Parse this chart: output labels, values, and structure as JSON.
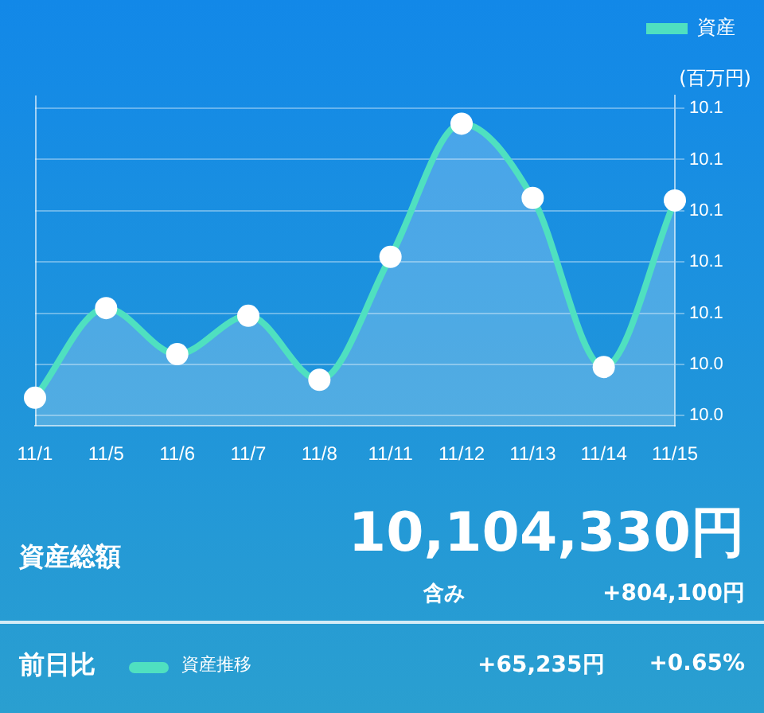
{
  "chart_data": {
    "type": "area",
    "categories": [
      "11/1",
      "11/5",
      "11/6",
      "11/7",
      "11/8",
      "11/11",
      "11/12",
      "11/13",
      "11/14",
      "11/15"
    ],
    "series": [
      {
        "name": "資産",
        "color": "#4fe0c0",
        "values": [
          10.027,
          10.062,
          10.044,
          10.059,
          10.034,
          10.082,
          10.134,
          10.105,
          10.039,
          10.104
        ]
      }
    ],
    "ylabel": "(百万円)",
    "ylim": [
      10.016,
      10.145
    ],
    "yticks": [
      {
        "value": 10.02,
        "label": "10.0"
      },
      {
        "value": 10.04,
        "label": "10.0"
      },
      {
        "value": 10.06,
        "label": "10.1"
      },
      {
        "value": 10.08,
        "label": "10.1"
      },
      {
        "value": 10.1,
        "label": "10.1"
      },
      {
        "value": 10.12,
        "label": "10.1"
      },
      {
        "value": 10.14,
        "label": "10.1"
      }
    ],
    "grid": "y",
    "legend": "top right",
    "marker": "circle",
    "line_style": "solid",
    "annotations": [
      "資産総額",
      "10,104,330円",
      "含み",
      "+804,100円",
      "前日比",
      "資産推移",
      "+65,235円",
      "+0.65%"
    ]
  }
}
